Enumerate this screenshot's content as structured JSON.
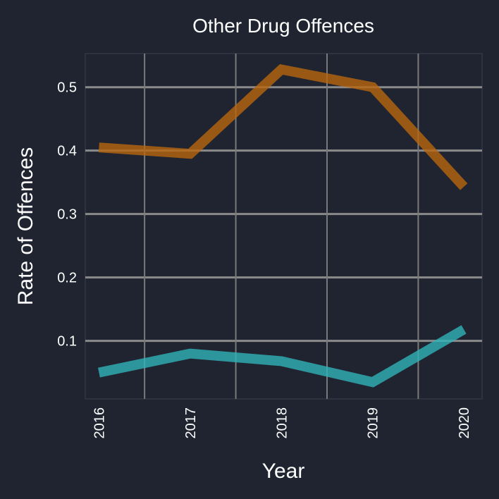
{
  "chart_data": {
    "type": "line",
    "title": "Other Drug Offences",
    "xlabel": "Year",
    "ylabel": "Rate of Offences",
    "categories": [
      "2016",
      "2017",
      "2018",
      "2019",
      "2020"
    ],
    "series": [
      {
        "color": "#b8660f",
        "values": [
          0.405,
          0.395,
          0.528,
          0.5,
          0.343
        ]
      },
      {
        "color": "#2fb3b8",
        "values": [
          0.05,
          0.08,
          0.068,
          0.035,
          0.118
        ]
      }
    ],
    "yticks": [
      "0.1",
      "0.2",
      "0.3",
      "0.4",
      "0.5"
    ],
    "ytick_values": [
      0.1,
      0.2,
      0.3,
      0.4,
      0.5
    ],
    "xlim": [
      2015.85,
      2020.2
    ],
    "ylim": [
      0.0085,
      0.553
    ],
    "grid": true,
    "background": "#1f2430"
  }
}
